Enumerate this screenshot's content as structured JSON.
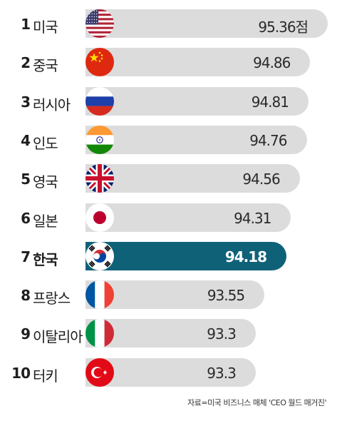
{
  "chart_data": {
    "type": "bar",
    "orientation": "horizontal",
    "xlim": [
      92.0,
      95.36
    ],
    "categories": [
      "미국",
      "중국",
      "러시아",
      "인도",
      "영국",
      "일본",
      "한국",
      "프랑스",
      "이탈리아",
      "터키"
    ],
    "values": [
      95.36,
      94.86,
      94.81,
      94.76,
      94.56,
      94.31,
      94.18,
      93.55,
      93.3,
      93.3
    ],
    "value_labels": [
      "95.36점",
      "94.86",
      "94.81",
      "94.76",
      "94.56",
      "94.31",
      "94.18",
      "93.55",
      "93.3",
      "93.3"
    ],
    "ranks": [
      "1",
      "2",
      "3",
      "4",
      "5",
      "6",
      "7",
      "8",
      "9",
      "10"
    ],
    "flags": [
      "us-flag",
      "china-flag",
      "russia-flag",
      "india-flag",
      "uk-flag",
      "japan-flag",
      "korea-flag",
      "france-flag",
      "italy-flag",
      "turkey-flag"
    ],
    "highlight_index": 6,
    "colors": {
      "bar": "#dcdcdc",
      "highlight": "#0f6178"
    },
    "source": "자료=미국 비즈니스 매체 'CEO 월드 매거진'"
  }
}
